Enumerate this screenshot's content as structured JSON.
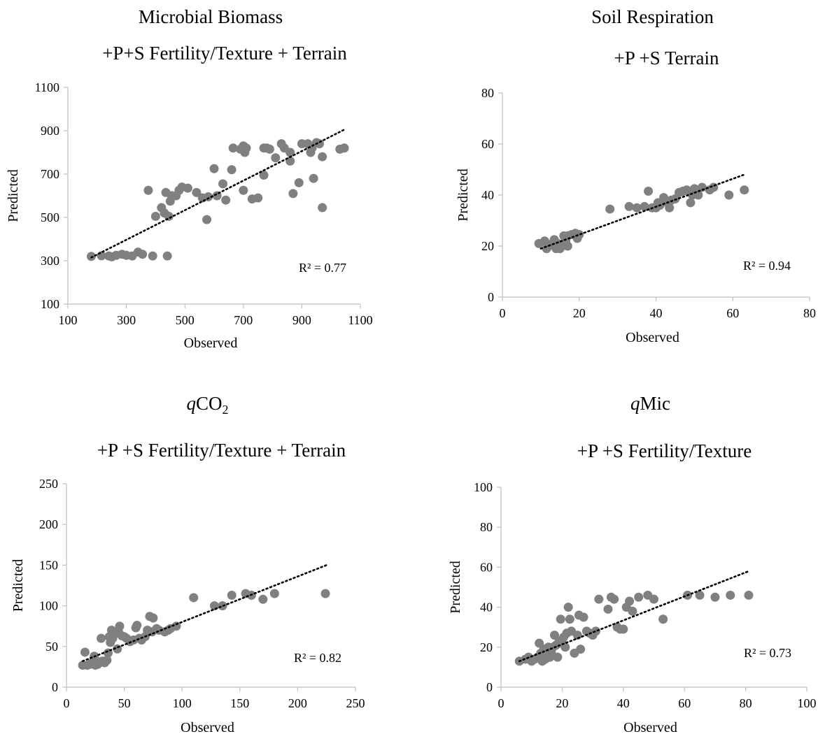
{
  "chart_data": [
    {
      "type": "scatter",
      "title": "Microbial Biomass",
      "subtitle": "+P+S Fertility/Texture + Terrain",
      "xlabel": "Observed",
      "ylabel": "Predicted",
      "xlim": [
        100,
        1100
      ],
      "ylim": [
        100,
        1100
      ],
      "xticks": [
        "100",
        "300",
        "500",
        "700",
        "900",
        "1100"
      ],
      "yticks": [
        "100",
        "300",
        "500",
        "700",
        "900",
        "1100"
      ],
      "r2_label": "R² = 0.77",
      "trendline": {
        "x1": 180,
        "y1": 315,
        "x2": 1045,
        "y2": 905
      },
      "marker_color": "#808080",
      "points": [
        [
          180,
          320
        ],
        [
          215,
          323
        ],
        [
          240,
          322
        ],
        [
          250,
          318
        ],
        [
          265,
          325
        ],
        [
          285,
          330
        ],
        [
          300,
          325
        ],
        [
          320,
          322
        ],
        [
          340,
          340
        ],
        [
          355,
          330
        ],
        [
          390,
          322
        ],
        [
          440,
          322
        ],
        [
          400,
          505
        ],
        [
          420,
          545
        ],
        [
          430,
          520
        ],
        [
          435,
          615
        ],
        [
          445,
          505
        ],
        [
          450,
          575
        ],
        [
          455,
          600
        ],
        [
          470,
          600
        ],
        [
          480,
          625
        ],
        [
          490,
          640
        ],
        [
          510,
          635
        ],
        [
          540,
          615
        ],
        [
          560,
          590
        ],
        [
          575,
          490
        ],
        [
          580,
          595
        ],
        [
          600,
          725
        ],
        [
          610,
          600
        ],
        [
          630,
          655
        ],
        [
          640,
          580
        ],
        [
          660,
          720
        ],
        [
          665,
          820
        ],
        [
          690,
          815
        ],
        [
          700,
          830
        ],
        [
          705,
          800
        ],
        [
          710,
          820
        ],
        [
          700,
          625
        ],
        [
          730,
          585
        ],
        [
          750,
          590
        ],
        [
          770,
          820
        ],
        [
          780,
          820
        ],
        [
          790,
          815
        ],
        [
          770,
          695
        ],
        [
          810,
          775
        ],
        [
          830,
          840
        ],
        [
          840,
          820
        ],
        [
          860,
          800
        ],
        [
          860,
          760
        ],
        [
          870,
          610
        ],
        [
          890,
          660
        ],
        [
          900,
          840
        ],
        [
          920,
          840
        ],
        [
          930,
          800
        ],
        [
          935,
          820
        ],
        [
          940,
          680
        ],
        [
          950,
          845
        ],
        [
          960,
          840
        ],
        [
          970,
          780
        ],
        [
          970,
          545
        ],
        [
          1030,
          815
        ],
        [
          1045,
          820
        ],
        [
          375,
          625
        ]
      ]
    },
    {
      "type": "scatter",
      "title": "Soil Respiration",
      "subtitle": "+P +S Terrain",
      "xlabel": "Observed",
      "ylabel": "Predicted",
      "xlim": [
        0,
        80
      ],
      "ylim": [
        0,
        80
      ],
      "xticks": [
        "0",
        "20",
        "40",
        "60",
        "80"
      ],
      "yticks": [
        "0",
        "20",
        "40",
        "60",
        "80"
      ],
      "r2_label": "R² = 0.94",
      "trendline": {
        "x1": 10,
        "y1": 19,
        "x2": 63,
        "y2": 48
      },
      "marker_color": "#808080",
      "points": [
        [
          9.5,
          21
        ],
        [
          11,
          22
        ],
        [
          11.5,
          19
        ],
        [
          12,
          20
        ],
        [
          13,
          21
        ],
        [
          13.5,
          22.5
        ],
        [
          14,
          19
        ],
        [
          14.5,
          21
        ],
        [
          15,
          19
        ],
        [
          15.5,
          20
        ],
        [
          16,
          24
        ],
        [
          16.5,
          22
        ],
        [
          17,
          24
        ],
        [
          17,
          20
        ],
        [
          18,
          24.5
        ],
        [
          19,
          25
        ],
        [
          19.5,
          23
        ],
        [
          20,
          24.5
        ],
        [
          28,
          34.5
        ],
        [
          33,
          35.5
        ],
        [
          35,
          35
        ],
        [
          37,
          35.5
        ],
        [
          38,
          41.5
        ],
        [
          39,
          35
        ],
        [
          40,
          35
        ],
        [
          40.5,
          37
        ],
        [
          41,
          36
        ],
        [
          42,
          39
        ],
        [
          43,
          37
        ],
        [
          43.5,
          35
        ],
        [
          44,
          38
        ],
        [
          45,
          38.5
        ],
        [
          46,
          41
        ],
        [
          47,
          41.5
        ],
        [
          48,
          42
        ],
        [
          49,
          37
        ],
        [
          49.5,
          40
        ],
        [
          50,
          42.5
        ],
        [
          51,
          40
        ],
        [
          52,
          43
        ],
        [
          54,
          42
        ],
        [
          55,
          43
        ],
        [
          59,
          40
        ],
        [
          63,
          42
        ]
      ]
    },
    {
      "type": "scatter",
      "title": "qCO2",
      "subtitle": "+P +S Fertility/Texture + Terrain",
      "xlabel": "Observed",
      "ylabel": "Predicted",
      "xlim": [
        0,
        250
      ],
      "ylim": [
        0,
        250
      ],
      "xticks": [
        "0",
        "50",
        "100",
        "150",
        "200",
        "250"
      ],
      "yticks": [
        "0",
        "50",
        "100",
        "150",
        "200",
        "250"
      ],
      "r2_label": "R² = 0.82",
      "trendline": {
        "x1": 14,
        "y1": 32,
        "x2": 225,
        "y2": 150
      },
      "marker_color": "#808080",
      "points": [
        [
          14,
          27
        ],
        [
          16,
          43
        ],
        [
          18,
          27
        ],
        [
          20,
          28
        ],
        [
          22,
          30
        ],
        [
          24,
          38
        ],
        [
          25,
          27
        ],
        [
          27,
          28
        ],
        [
          28,
          31
        ],
        [
          30,
          60
        ],
        [
          31,
          32
        ],
        [
          33,
          30
        ],
        [
          35,
          33
        ],
        [
          36,
          42
        ],
        [
          37,
          62
        ],
        [
          38,
          55
        ],
        [
          39,
          70
        ],
        [
          40,
          60
        ],
        [
          42,
          66
        ],
        [
          44,
          47
        ],
        [
          45,
          68
        ],
        [
          46,
          75
        ],
        [
          48,
          63
        ],
        [
          50,
          62
        ],
        [
          52,
          60
        ],
        [
          55,
          56
        ],
        [
          58,
          58
        ],
        [
          60,
          73
        ],
        [
          61,
          76
        ],
        [
          63,
          60
        ],
        [
          65,
          58
        ],
        [
          68,
          62
        ],
        [
          70,
          70
        ],
        [
          72,
          87
        ],
        [
          74,
          68
        ],
        [
          75,
          85
        ],
        [
          78,
          72
        ],
        [
          80,
          70
        ],
        [
          85,
          68
        ],
        [
          88,
          70
        ],
        [
          90,
          72
        ],
        [
          95,
          75
        ],
        [
          110,
          110
        ],
        [
          128,
          100
        ],
        [
          135,
          100
        ],
        [
          143,
          113
        ],
        [
          155,
          115
        ],
        [
          160,
          113
        ],
        [
          170,
          108
        ],
        [
          180,
          115
        ],
        [
          224,
          115
        ]
      ]
    },
    {
      "type": "scatter",
      "title": "qMic",
      "subtitle": "+P +S Fertility/Texture",
      "xlabel": "Observed",
      "ylabel": "Predicted",
      "xlim": [
        0,
        100
      ],
      "ylim": [
        0,
        100
      ],
      "xticks": [
        "0",
        "20",
        "40",
        "60",
        "80",
        "100"
      ],
      "yticks": [
        "0",
        "20",
        "40",
        "60",
        "80",
        "100"
      ],
      "r2_label": "R² = 0.73",
      "trendline": {
        "x1": 6,
        "y1": 13,
        "x2": 81,
        "y2": 58
      },
      "marker_color": "#808080",
      "points": [
        [
          6,
          13
        ],
        [
          8,
          14
        ],
        [
          9,
          15
        ],
        [
          10,
          13
        ],
        [
          11,
          14
        ],
        [
          12,
          15
        ],
        [
          12.5,
          22
        ],
        [
          13,
          17
        ],
        [
          13.5,
          13
        ],
        [
          14,
          19
        ],
        [
          14.5,
          14
        ],
        [
          15,
          16
        ],
        [
          15.5,
          20
        ],
        [
          16,
          15
        ],
        [
          16.5,
          17
        ],
        [
          17,
          20
        ],
        [
          17.5,
          26
        ],
        [
          18,
          21
        ],
        [
          18.5,
          15
        ],
        [
          19,
          23
        ],
        [
          19.5,
          34
        ],
        [
          20,
          22
        ],
        [
          20.5,
          25
        ],
        [
          21,
          20
        ],
        [
          21.5,
          27
        ],
        [
          22,
          40
        ],
        [
          22.5,
          34
        ],
        [
          23,
          28
        ],
        [
          24,
          17
        ],
        [
          25,
          26
        ],
        [
          25.5,
          36
        ],
        [
          26,
          19
        ],
        [
          27,
          35
        ],
        [
          28,
          28
        ],
        [
          29,
          27
        ],
        [
          30,
          26
        ],
        [
          31,
          28
        ],
        [
          32,
          44
        ],
        [
          35,
          39
        ],
        [
          36,
          45
        ],
        [
          37,
          44
        ],
        [
          38,
          30
        ],
        [
          39,
          29
        ],
        [
          40,
          29
        ],
        [
          41,
          40
        ],
        [
          42,
          43
        ],
        [
          43,
          38
        ],
        [
          45,
          45
        ],
        [
          48,
          46
        ],
        [
          50,
          44
        ],
        [
          53,
          34
        ],
        [
          61,
          46
        ],
        [
          65,
          46
        ],
        [
          70,
          45
        ],
        [
          75,
          46
        ],
        [
          81,
          46
        ]
      ]
    }
  ]
}
